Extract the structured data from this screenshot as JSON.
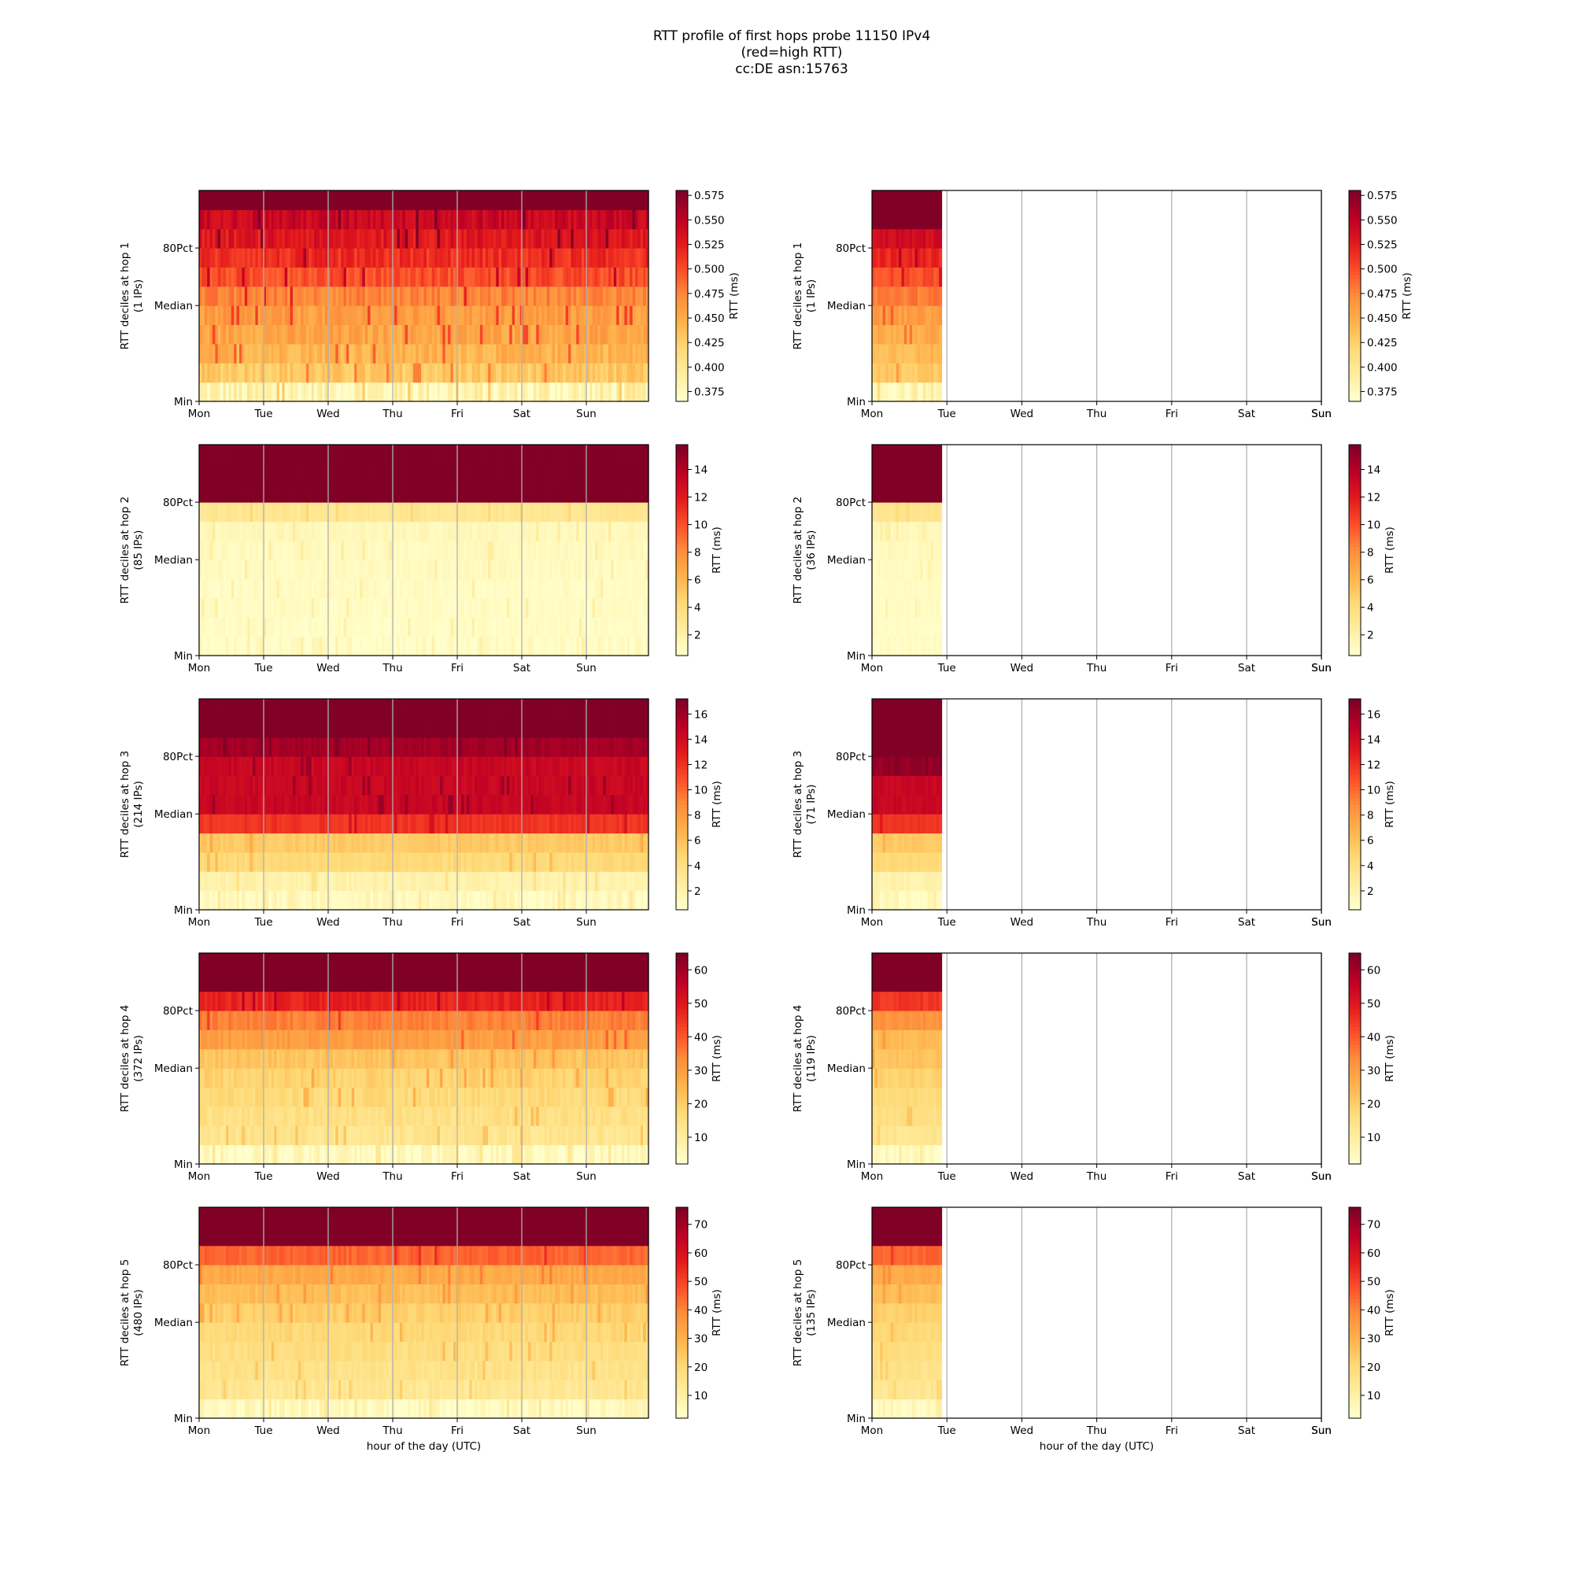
{
  "title_lines": [
    "RTT profile of first hops probe 11150 IPv4",
    "(red=high RTT)",
    "cc:DE asn:15763"
  ],
  "colors": {
    "cmap": [
      "#ffffcc",
      "#ffeda0",
      "#fed976",
      "#feb24c",
      "#fd8d3c",
      "#fc4e2a",
      "#e31a1c",
      "#bd0026",
      "#800026"
    ],
    "grid": "#b0b0b0",
    "axis": "#000000"
  },
  "chart_data": [
    {
      "type": "heatmap",
      "column": "left",
      "hop": 1,
      "ylabel": [
        "RTT deciles at hop 1",
        "(1 IPs)"
      ],
      "xlabel": "",
      "x_ticks": [
        "Mon",
        "Tue",
        "Wed",
        "Thu",
        "Fri",
        "Sat",
        "Sun"
      ],
      "y_ticks": [
        "Min",
        "Median",
        "80Pct"
      ],
      "data_fraction": 1.0,
      "clim": [
        0.365,
        0.58
      ],
      "colorbar_label": "RTT (ms)",
      "colorbar_ticks": [
        "0.375",
        "0.400",
        "0.425",
        "0.450",
        "0.475",
        "0.500",
        "0.525",
        "0.550",
        "0.575"
      ],
      "decile_values": [
        0.38,
        0.43,
        0.445,
        0.455,
        0.46,
        0.475,
        0.5,
        0.515,
        0.53,
        0.545,
        0.6
      ],
      "jitter": 0.022
    },
    {
      "type": "heatmap",
      "column": "right",
      "hop": 1,
      "ylabel": [
        "RTT deciles at hop 1",
        "(1 IPs)"
      ],
      "xlabel": "",
      "x_ticks": [
        "Mon",
        "Tue",
        "Wed",
        "Thu",
        "Fri",
        "Sat",
        "Sun"
      ],
      "y_ticks": [
        "Min",
        "Median",
        "80Pct"
      ],
      "data_fraction": 0.155,
      "clim": [
        0.365,
        0.58
      ],
      "colorbar_label": "RTT (ms)",
      "colorbar_ticks": [
        "0.375",
        "0.400",
        "0.425",
        "0.450",
        "0.475",
        "0.500",
        "0.525",
        "0.550",
        "0.575"
      ],
      "decile_values": [
        0.38,
        0.43,
        0.44,
        0.45,
        0.46,
        0.48,
        0.5,
        0.52,
        0.54,
        0.6,
        0.6
      ],
      "jitter": 0.015
    },
    {
      "type": "heatmap",
      "column": "left",
      "hop": 2,
      "ylabel": [
        "RTT deciles at hop 2",
        "(85 IPs)"
      ],
      "xlabel": "",
      "x_ticks": [
        "Mon",
        "Tue",
        "Wed",
        "Thu",
        "Fri",
        "Sat",
        "Sun"
      ],
      "y_ticks": [
        "Min",
        "Median",
        "80Pct"
      ],
      "data_fraction": 1.0,
      "clim": [
        0.5,
        15.8
      ],
      "colorbar_label": "RTT (ms)",
      "colorbar_ticks": [
        "2",
        "4",
        "6",
        "8",
        "10",
        "12",
        "14"
      ],
      "decile_values": [
        0.8,
        0.8,
        0.9,
        0.9,
        1.0,
        1.1,
        1.3,
        3.0,
        16,
        16,
        16
      ],
      "jitter": 0.6
    },
    {
      "type": "heatmap",
      "column": "right",
      "hop": 2,
      "ylabel": [
        "RTT deciles at hop 2",
        "(36 IPs)"
      ],
      "xlabel": "",
      "x_ticks": [
        "Mon",
        "Tue",
        "Wed",
        "Thu",
        "Fri",
        "Sat",
        "Sun"
      ],
      "y_ticks": [
        "Min",
        "Median",
        "80Pct"
      ],
      "data_fraction": 0.155,
      "clim": [
        0.5,
        15.8
      ],
      "colorbar_label": "RTT (ms)",
      "colorbar_ticks": [
        "2",
        "4",
        "6",
        "8",
        "10",
        "12",
        "14"
      ],
      "decile_values": [
        0.8,
        0.8,
        0.9,
        0.9,
        1.0,
        1.1,
        1.3,
        3.2,
        16,
        16,
        16
      ],
      "jitter": 0.4
    },
    {
      "type": "heatmap",
      "column": "left",
      "hop": 3,
      "ylabel": [
        "RTT deciles at hop 3",
        "(214 IPs)"
      ],
      "xlabel": "",
      "x_ticks": [
        "Mon",
        "Tue",
        "Wed",
        "Thu",
        "Fri",
        "Sat",
        "Sun"
      ],
      "y_ticks": [
        "Min",
        "Median",
        "80Pct"
      ],
      "data_fraction": 1.0,
      "clim": [
        0.5,
        17.2
      ],
      "colorbar_label": "RTT (ms)",
      "colorbar_ticks": [
        "2",
        "4",
        "6",
        "8",
        "10",
        "12",
        "14",
        "16"
      ],
      "decile_values": [
        1.2,
        2.0,
        4.5,
        5.5,
        12,
        14.5,
        14.5,
        14.5,
        16,
        17.5,
        17.5
      ],
      "jitter": 0.8
    },
    {
      "type": "heatmap",
      "column": "right",
      "hop": 3,
      "ylabel": [
        "RTT deciles at hop 3",
        "(71 IPs)"
      ],
      "xlabel": "",
      "x_ticks": [
        "Mon",
        "Tue",
        "Wed",
        "Thu",
        "Fri",
        "Sat",
        "Sun"
      ],
      "y_ticks": [
        "Min",
        "Median",
        "80Pct"
      ],
      "data_fraction": 0.155,
      "clim": [
        0.5,
        17.2
      ],
      "colorbar_label": "RTT (ms)",
      "colorbar_ticks": [
        "2",
        "4",
        "6",
        "8",
        "10",
        "12",
        "14",
        "16"
      ],
      "decile_values": [
        1.2,
        2.0,
        4.5,
        5.5,
        12,
        14.5,
        14.5,
        16.5,
        17.5,
        17.5,
        17.5
      ],
      "jitter": 0.6
    },
    {
      "type": "heatmap",
      "column": "left",
      "hop": 4,
      "ylabel": [
        "RTT deciles at hop 4",
        "(372 IPs)"
      ],
      "xlabel": "",
      "x_ticks": [
        "Mon",
        "Tue",
        "Wed",
        "Thu",
        "Fri",
        "Sat",
        "Sun"
      ],
      "y_ticks": [
        "Min",
        "Median",
        "80Pct"
      ],
      "data_fraction": 1.0,
      "clim": [
        2,
        65
      ],
      "colorbar_label": "RTT (ms)",
      "colorbar_ticks": [
        "10",
        "20",
        "30",
        "40",
        "50",
        "60"
      ],
      "decile_values": [
        4,
        13,
        15,
        17,
        19,
        22,
        30,
        35,
        48,
        70,
        70
      ],
      "jitter": 4
    },
    {
      "type": "heatmap",
      "column": "right",
      "hop": 4,
      "ylabel": [
        "RTT deciles at hop 4",
        "(119 IPs)"
      ],
      "xlabel": "",
      "x_ticks": [
        "Mon",
        "Tue",
        "Wed",
        "Thu",
        "Fri",
        "Sat",
        "Sun"
      ],
      "y_ticks": [
        "Min",
        "Median",
        "80Pct"
      ],
      "data_fraction": 0.155,
      "clim": [
        2,
        65
      ],
      "colorbar_label": "RTT (ms)",
      "colorbar_ticks": [
        "10",
        "20",
        "30",
        "40",
        "50",
        "60"
      ],
      "decile_values": [
        4,
        13,
        15,
        17,
        19,
        22,
        24,
        32,
        45,
        70,
        70
      ],
      "jitter": 3
    },
    {
      "type": "heatmap",
      "column": "left",
      "hop": 5,
      "ylabel": [
        "RTT deciles at hop 5",
        "(480 IPs)"
      ],
      "xlabel": "hour of the day (UTC)",
      "x_ticks": [
        "Mon",
        "Tue",
        "Wed",
        "Thu",
        "Fri",
        "Sat",
        "Sun"
      ],
      "y_ticks": [
        "Min",
        "Median",
        "80Pct"
      ],
      "data_fraction": 1.0,
      "clim": [
        2,
        76
      ],
      "colorbar_label": "RTT (ms)",
      "colorbar_ticks": [
        "10",
        "20",
        "30",
        "40",
        "50",
        "60",
        "70"
      ],
      "decile_values": [
        5,
        14,
        16,
        18,
        20,
        23,
        27,
        32,
        45,
        80,
        80
      ],
      "jitter": 4
    },
    {
      "type": "heatmap",
      "column": "right",
      "hop": 5,
      "ylabel": [
        "RTT deciles at hop 5",
        "(135 IPs)"
      ],
      "xlabel": "hour of the day (UTC)",
      "x_ticks": [
        "Mon",
        "Tue",
        "Wed",
        "Thu",
        "Fri",
        "Sat",
        "Sun"
      ],
      "y_ticks": [
        "Min",
        "Median",
        "80Pct"
      ],
      "data_fraction": 0.155,
      "clim": [
        2,
        76
      ],
      "colorbar_label": "RTT (ms)",
      "colorbar_ticks": [
        "10",
        "20",
        "30",
        "40",
        "50",
        "60",
        "70"
      ],
      "decile_values": [
        5,
        14,
        16,
        18,
        20,
        23,
        27,
        32,
        45,
        80,
        80
      ],
      "jitter": 3
    }
  ]
}
